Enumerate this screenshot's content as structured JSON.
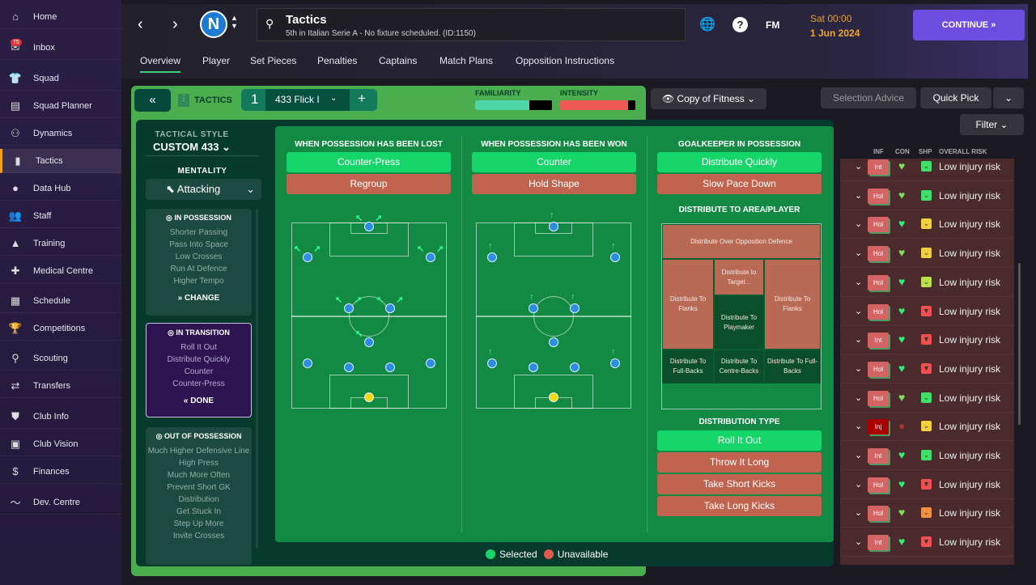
{
  "sidebar": {
    "items": [
      {
        "label": "Home",
        "icon": "home-icon",
        "glyph": "⌂"
      },
      {
        "label": "Inbox",
        "icon": "inbox-icon",
        "glyph": "✉",
        "badge": "75"
      },
      {
        "label": "Squad",
        "icon": "squad-icon",
        "glyph": "👕"
      },
      {
        "label": "Squad Planner",
        "icon": "clipboard-icon",
        "glyph": "▤"
      },
      {
        "label": "Dynamics",
        "icon": "dynamics-icon",
        "glyph": "⚇"
      },
      {
        "label": "Tactics",
        "icon": "tactics-icon",
        "glyph": "▮",
        "active": true
      },
      {
        "label": "Data Hub",
        "icon": "data-hub-icon",
        "glyph": "●"
      },
      {
        "label": "Staff",
        "icon": "staff-icon",
        "glyph": "👥"
      },
      {
        "label": "Training",
        "icon": "training-icon",
        "glyph": "▲"
      },
      {
        "label": "Medical Centre",
        "icon": "medical-icon",
        "glyph": "✚"
      },
      {
        "label": "Schedule",
        "icon": "calendar-icon",
        "glyph": "▦"
      },
      {
        "label": "Competitions",
        "icon": "trophy-icon",
        "glyph": "🏆"
      },
      {
        "label": "Scouting",
        "icon": "search-icon",
        "glyph": "⚲"
      },
      {
        "label": "Transfers",
        "icon": "transfers-icon",
        "glyph": "⇄"
      },
      {
        "label": "Club Info",
        "icon": "shield-icon",
        "glyph": "⛊"
      },
      {
        "label": "Club Vision",
        "icon": "briefcase-icon",
        "glyph": "▣"
      },
      {
        "label": "Finances",
        "icon": "finances-icon",
        "glyph": "$"
      },
      {
        "label": "Dev. Centre",
        "icon": "dev-centre-icon",
        "glyph": "〜"
      }
    ]
  },
  "header": {
    "title": "Tactics",
    "subtitle": "5th in Italian Serie A - No fixture scheduled. (ID:1150)",
    "club_letter": "N",
    "fm": "FM",
    "day_time": "Sat 00:00",
    "date": "1 Jun 2024",
    "continue": "CONTINUE »"
  },
  "tabs": [
    "Overview",
    "Player",
    "Set Pieces",
    "Penalties",
    "Captains",
    "Match Plans",
    "Opposition Instructions"
  ],
  "tactics_bar": {
    "label": "TACTICS",
    "slot": "1",
    "tactic_name": "433 Flick I",
    "familiarity_label": "FAMILIARITY",
    "familiarity": 0.7,
    "intensity_label": "INTENSITY",
    "intensity": 0.9
  },
  "toolbar": {
    "view": "Copy of Fitness",
    "selection_advice": "Selection Advice",
    "quick_pick": "Quick Pick",
    "filter": "Filter"
  },
  "left": {
    "style_label": "TACTICAL STYLE",
    "style": "CUSTOM 433",
    "mentality_label": "MENTALITY",
    "mentality": "Attacking",
    "in_possession": {
      "title": "IN POSSESSION",
      "items": [
        "Shorter Passing",
        "Pass Into Space",
        "Low Crosses",
        "Run At Defence",
        "Higher Tempo"
      ],
      "action": "» CHANGE"
    },
    "in_transition": {
      "title": "IN TRANSITION",
      "items": [
        "Roll It Out",
        "Distribute Quickly",
        "Counter",
        "Counter-Press"
      ],
      "action": "« DONE"
    },
    "out_of_possession": {
      "title": "OUT OF POSSESSION",
      "items": [
        "Much Higher Defensive Line",
        "High Press",
        "Much More Often",
        "Prevent Short GK Distribution",
        "Get Stuck In",
        "Step Up More",
        "Invite Crosses"
      ]
    }
  },
  "lost": {
    "title": "WHEN POSSESSION HAS BEEN LOST",
    "options": [
      {
        "label": "Counter-Press",
        "state": "selected"
      },
      {
        "label": "Regroup",
        "state": "unavailable"
      }
    ]
  },
  "won": {
    "title": "WHEN POSSESSION HAS BEEN WON",
    "options": [
      {
        "label": "Counter",
        "state": "selected"
      },
      {
        "label": "Hold Shape",
        "state": "unavailable"
      }
    ]
  },
  "gk": {
    "title": "GOALKEEPER IN POSSESSION",
    "options": [
      {
        "label": "Distribute Quickly",
        "state": "selected"
      },
      {
        "label": "Slow Pace Down",
        "state": "unavailable"
      }
    ],
    "area_title": "DISTRIBUTE TO AREA/PLAYER",
    "zones": [
      {
        "label": "Distribute Over Opposition Defence",
        "state": "unavailable"
      },
      {
        "label": "Distribute to Target...",
        "state": "unavailable"
      },
      {
        "label": "Distribute To Flanks",
        "state": "unavailable"
      },
      {
        "label": "Distribute To Playmaker",
        "state": "selected"
      },
      {
        "label": "Distribute To Flanks",
        "state": "unavailable"
      },
      {
        "label": "Distribute To Full-Backs",
        "state": "selected"
      },
      {
        "label": "Distribute To Centre-Backs",
        "state": "selected"
      },
      {
        "label": "Distribute To Full-Backs",
        "state": "selected"
      }
    ],
    "type_title": "DISTRIBUTION TYPE",
    "types": [
      {
        "label": "Roll It Out",
        "state": "selected"
      },
      {
        "label": "Throw It Long",
        "state": "unavailable"
      },
      {
        "label": "Take Short Kicks",
        "state": "unavailable"
      },
      {
        "label": "Take Long Kicks",
        "state": "unavailable"
      }
    ]
  },
  "legend": {
    "selected": "Selected",
    "unavailable": "Unavailable",
    "selected_color": "#16d66a",
    "unavailable_color": "#e05a50"
  },
  "table": {
    "headers": [
      "INF",
      "CON",
      "SHP",
      "OVERALL RISK"
    ],
    "rows": [
      {
        "inf": "Int",
        "con": "light",
        "shp": "green",
        "risk": "Low injury risk"
      },
      {
        "inf": "Hol",
        "con": "light",
        "shp": "green",
        "risk": "Low injury risk"
      },
      {
        "inf": "Hol",
        "con": "green",
        "shp": "yellow",
        "risk": "Low injury risk"
      },
      {
        "inf": "Hol",
        "con": "light",
        "shp": "yellow",
        "risk": "Low injury risk"
      },
      {
        "inf": "Hol",
        "con": "green",
        "shp": "lime",
        "risk": "Low injury risk"
      },
      {
        "inf": "Hol",
        "con": "green",
        "shp": "red",
        "risk": "Low injury risk"
      },
      {
        "inf": "Int",
        "con": "green",
        "shp": "red",
        "risk": "Low injury risk"
      },
      {
        "inf": "Hol",
        "con": "green",
        "shp": "red",
        "risk": "Low injury risk"
      },
      {
        "inf": "Hol",
        "con": "light",
        "shp": "green",
        "risk": "Low injury risk"
      },
      {
        "inf": "Inj",
        "con": "injured",
        "shp": "yellow",
        "risk": "Low injury risk"
      },
      {
        "inf": "Int",
        "con": "green",
        "shp": "green",
        "risk": "Low injury risk"
      },
      {
        "inf": "Hol",
        "con": "green",
        "shp": "red",
        "risk": "Low injury risk"
      },
      {
        "inf": "Hol",
        "con": "light",
        "shp": "orange",
        "risk": "Low injury risk"
      },
      {
        "inf": "Int",
        "con": "green",
        "shp": "red",
        "risk": "Low injury risk"
      }
    ]
  }
}
